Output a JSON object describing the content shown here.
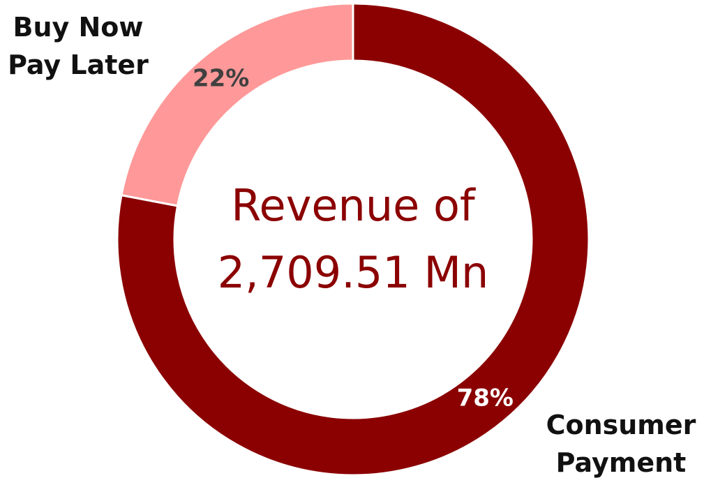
{
  "chart_data": {
    "type": "donut",
    "categories": [
      "Consumer Payment",
      "Buy Now Pay Later"
    ],
    "values": [
      78,
      22
    ],
    "value_labels": [
      "78%",
      "22%"
    ],
    "colors": [
      "#8b0000",
      "#ff9999"
    ],
    "label_colors": [
      "#ffffff",
      "#404040"
    ],
    "center_text": "Revenue of 2,709.51 Mn"
  }
}
